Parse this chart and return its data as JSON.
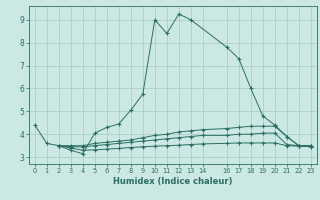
{
  "xlabel": "Humidex (Indice chaleur)",
  "bg_color": "#cce8e4",
  "grid_color": "#aacec8",
  "line_color": "#2a6e62",
  "xlim": [
    -0.5,
    23.5
  ],
  "ylim": [
    2.7,
    9.6
  ],
  "xticks": [
    0,
    1,
    2,
    3,
    4,
    5,
    6,
    7,
    8,
    9,
    10,
    11,
    12,
    13,
    14,
    16,
    17,
    18,
    19,
    20,
    21,
    22,
    23
  ],
  "yticks": [
    3,
    4,
    5,
    6,
    7,
    8,
    9
  ],
  "series": [
    {
      "x": [
        0,
        1,
        2,
        3,
        4,
        5,
        6,
        7,
        8,
        9,
        10,
        11,
        12,
        13,
        16,
        17,
        18,
        19,
        20,
        21,
        22,
        23
      ],
      "y": [
        4.4,
        3.6,
        3.5,
        3.3,
        3.15,
        4.05,
        4.3,
        4.45,
        5.05,
        5.75,
        9.0,
        8.4,
        9.25,
        9.0,
        7.8,
        7.3,
        6.0,
        4.8,
        4.4,
        3.9,
        3.5,
        3.5
      ]
    },
    {
      "x": [
        2,
        3,
        4,
        5,
        6,
        7,
        8,
        9,
        10,
        11,
        12,
        13,
        14,
        16,
        17,
        18,
        19,
        20,
        21,
        22,
        23
      ],
      "y": [
        3.5,
        3.5,
        3.5,
        3.6,
        3.65,
        3.7,
        3.75,
        3.85,
        3.95,
        4.0,
        4.1,
        4.15,
        4.2,
        4.25,
        4.3,
        4.35,
        4.35,
        4.35,
        3.9,
        3.5,
        3.5
      ]
    },
    {
      "x": [
        2,
        3,
        4,
        5,
        6,
        7,
        8,
        9,
        10,
        11,
        12,
        13,
        14,
        16,
        17,
        18,
        19,
        20,
        21,
        22,
        23
      ],
      "y": [
        3.5,
        3.45,
        3.45,
        3.5,
        3.55,
        3.6,
        3.65,
        3.7,
        3.75,
        3.8,
        3.85,
        3.9,
        3.95,
        3.95,
        4.0,
        4.0,
        4.05,
        4.05,
        3.55,
        3.5,
        3.5
      ]
    },
    {
      "x": [
        2,
        3,
        4,
        5,
        6,
        7,
        8,
        9,
        10,
        11,
        12,
        13,
        14,
        16,
        17,
        18,
        19,
        20,
        21,
        22,
        23
      ],
      "y": [
        3.5,
        3.4,
        3.3,
        3.32,
        3.35,
        3.38,
        3.42,
        3.45,
        3.48,
        3.5,
        3.52,
        3.55,
        3.58,
        3.6,
        3.62,
        3.62,
        3.62,
        3.62,
        3.5,
        3.48,
        3.45
      ]
    }
  ]
}
